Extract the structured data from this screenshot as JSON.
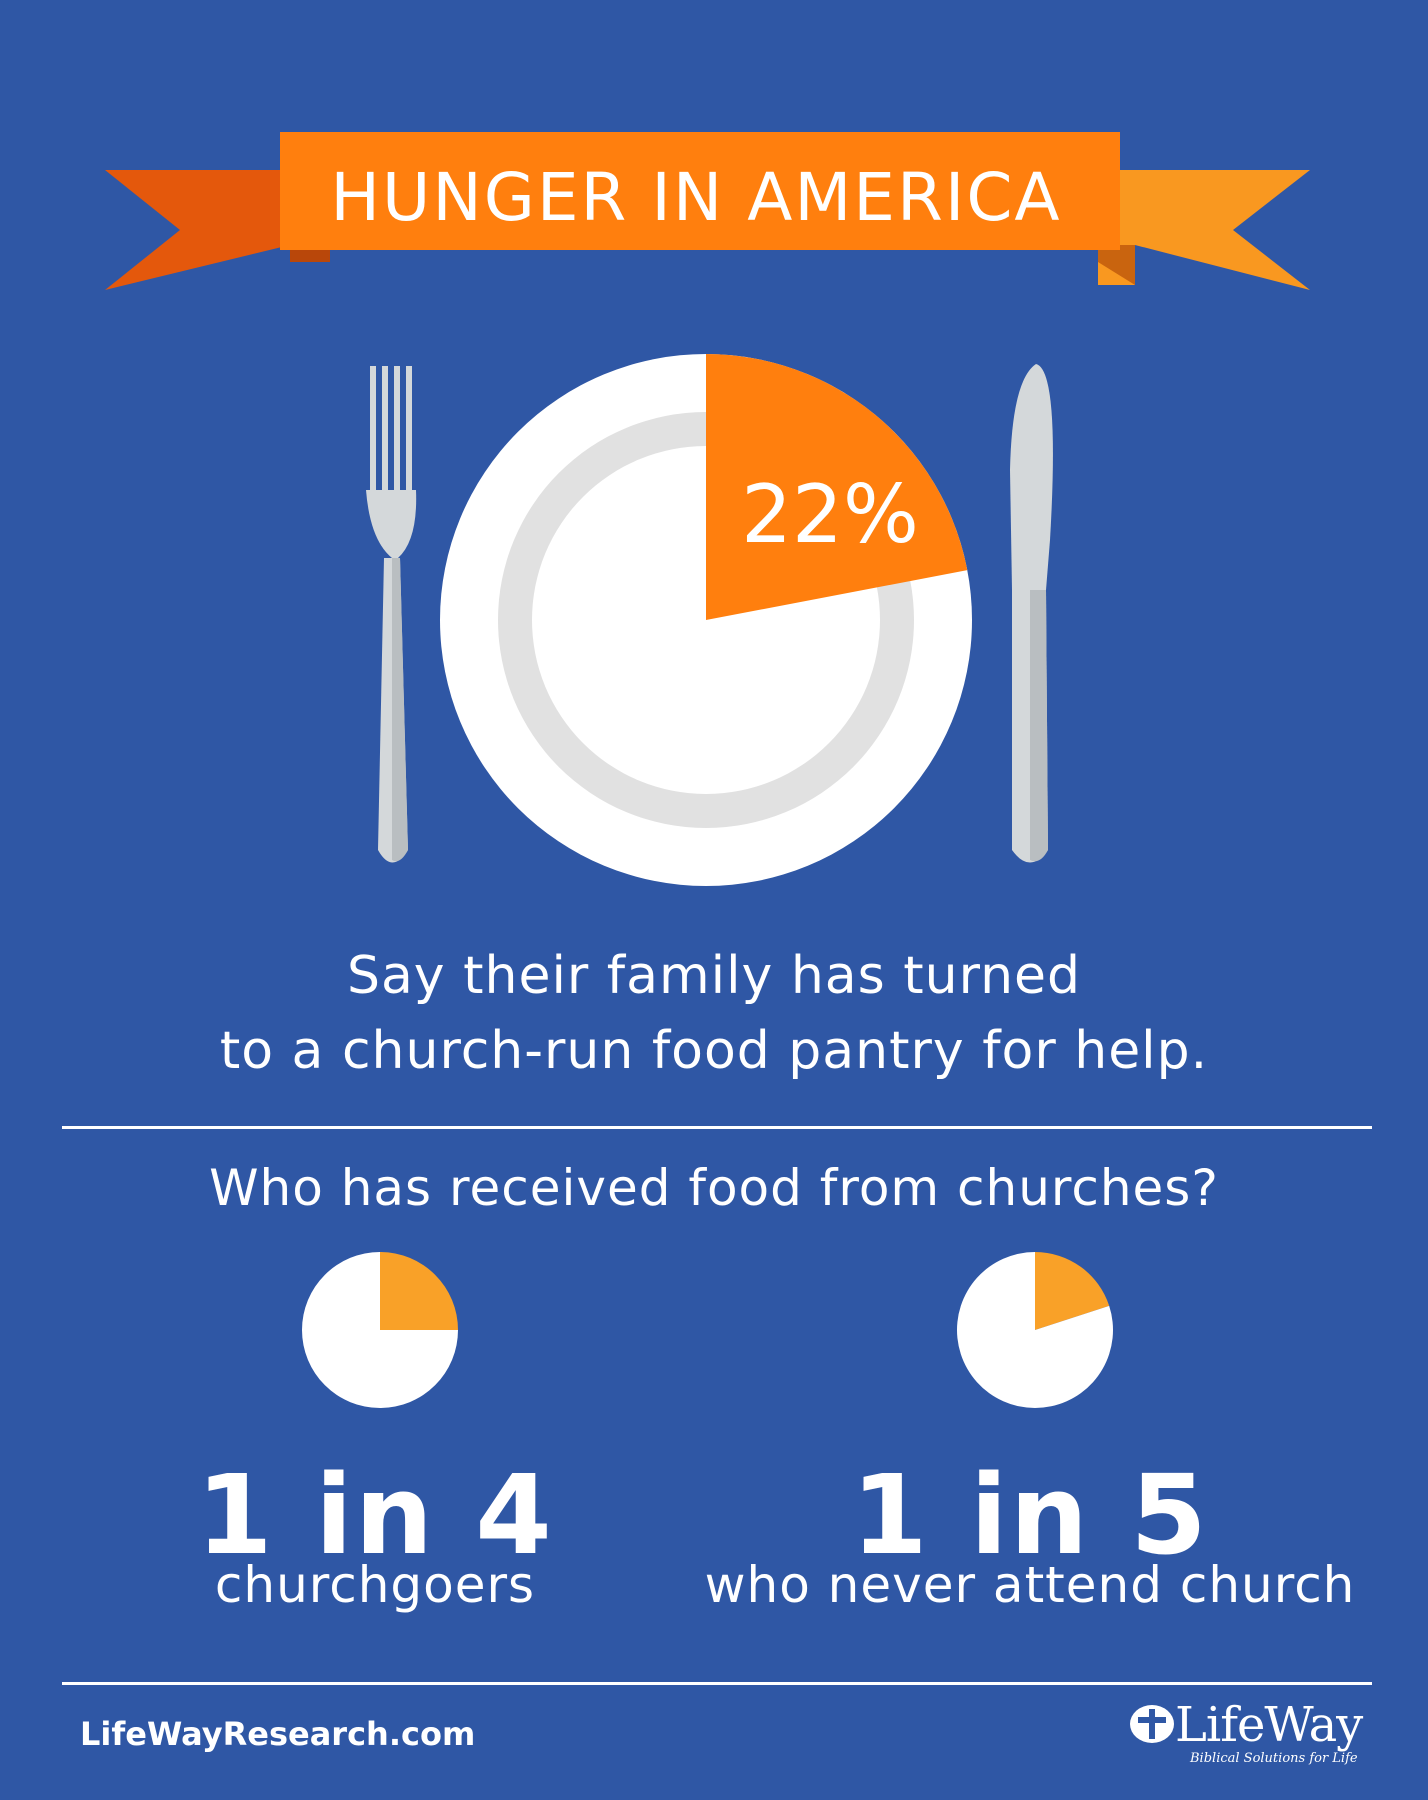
{
  "colors": {
    "background": "#2f57a5",
    "accent_orange": "#ff7f0e",
    "light_orange": "#f9a128",
    "plate_white": "#ffffff",
    "plate_rim": "#e1e1e1",
    "cutlery": "#d4d8da"
  },
  "header": {
    "title": "HUNGER IN AMERICA"
  },
  "hero": {
    "value_label": "22%",
    "caption_line1": "Say their family has turned",
    "caption_line2": "to a church-run food pantry for help.",
    "icons": [
      "fork-icon",
      "plate-icon",
      "knife-icon"
    ]
  },
  "section": {
    "question": "Who has received food from churches?"
  },
  "stats": [
    {
      "big": "1 in 4",
      "sub": "churchgoers"
    },
    {
      "big": "1 in 5",
      "sub": "who never attend church"
    }
  ],
  "footer": {
    "url": "LifeWayResearch.com",
    "logo_word": "LifeWay",
    "logo_tagline": "Biblical Solutions for Life"
  },
  "chart_data": [
    {
      "type": "pie",
      "categories": [
        "",
        ""
      ],
      "values": [
        22,
        78
      ],
      "value_labels": [
        "22%",
        ""
      ],
      "colors": [
        "#ff7f0e",
        "#ffffff"
      ]
    },
    {
      "type": "pie",
      "categories": [
        "",
        ""
      ],
      "values": [
        25,
        75
      ],
      "value_labels": [
        "",
        ""
      ],
      "colors": [
        "#f9a128",
        "#ffffff"
      ]
    },
    {
      "type": "pie",
      "categories": [
        "",
        ""
      ],
      "values": [
        20,
        80
      ],
      "value_labels": [
        "",
        ""
      ],
      "colors": [
        "#f9a128",
        "#ffffff"
      ]
    }
  ]
}
